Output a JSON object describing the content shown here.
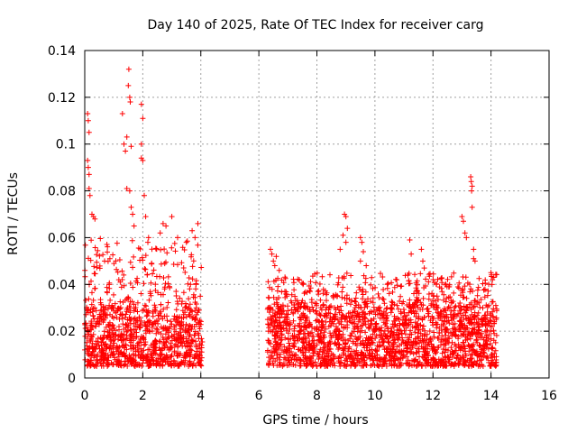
{
  "chart_data": {
    "type": "scatter",
    "title": "Day 140 of 2025, Rate Of TEC Index for receiver carg",
    "xlabel": "GPS time / hours",
    "ylabel": "ROTI / TECUs",
    "xlim": [
      0,
      16
    ],
    "ylim": [
      0,
      0.14
    ],
    "x_ticks": [
      0,
      2,
      4,
      6,
      8,
      10,
      12,
      14,
      16
    ],
    "y_ticks": [
      0,
      0.02,
      0.04,
      0.06,
      0.08,
      0.1,
      0.12,
      0.14
    ],
    "x_tick_labels": [
      "0",
      "2",
      "4",
      "6",
      "8",
      "10",
      "12",
      "14",
      "16"
    ],
    "y_tick_labels": [
      "0",
      "0.02",
      "0.04",
      "0.06",
      "0.08",
      "0.1",
      "0.12",
      "0.14"
    ],
    "grid": true,
    "marker": "+",
    "color": "#ff0000",
    "series": [
      {
        "name": "ROTI",
        "segments": [
          {
            "x_range": [
              0.0,
              4.05
            ],
            "baseline": [
              0.005,
              0.03
            ],
            "upper": [
              0.03,
              0.06
            ]
          },
          {
            "x_range": [
              6.3,
              14.2
            ],
            "baseline": [
              0.005,
              0.03
            ],
            "upper": [
              0.03,
              0.045
            ]
          }
        ],
        "highlights": [
          {
            "x": 0.1,
            "y": 0.113
          },
          {
            "x": 0.12,
            "y": 0.11
          },
          {
            "x": 0.15,
            "y": 0.105
          },
          {
            "x": 0.1,
            "y": 0.093
          },
          {
            "x": 0.12,
            "y": 0.09
          },
          {
            "x": 0.15,
            "y": 0.087
          },
          {
            "x": 0.15,
            "y": 0.081
          },
          {
            "x": 0.18,
            "y": 0.078
          },
          {
            "x": 0.25,
            "y": 0.07
          },
          {
            "x": 0.3,
            "y": 0.069
          },
          {
            "x": 0.35,
            "y": 0.068
          },
          {
            "x": 1.3,
            "y": 0.113
          },
          {
            "x": 1.35,
            "y": 0.1
          },
          {
            "x": 1.4,
            "y": 0.097
          },
          {
            "x": 1.45,
            "y": 0.103
          },
          {
            "x": 1.5,
            "y": 0.125
          },
          {
            "x": 1.52,
            "y": 0.132
          },
          {
            "x": 1.55,
            "y": 0.12
          },
          {
            "x": 1.57,
            "y": 0.118
          },
          {
            "x": 1.6,
            "y": 0.099
          },
          {
            "x": 1.45,
            "y": 0.081
          },
          {
            "x": 1.55,
            "y": 0.08
          },
          {
            "x": 1.6,
            "y": 0.073
          },
          {
            "x": 1.65,
            "y": 0.07
          },
          {
            "x": 1.7,
            "y": 0.065
          },
          {
            "x": 1.95,
            "y": 0.117
          },
          {
            "x": 2.0,
            "y": 0.111
          },
          {
            "x": 1.95,
            "y": 0.1
          },
          {
            "x": 1.95,
            "y": 0.094
          },
          {
            "x": 2.0,
            "y": 0.093
          },
          {
            "x": 2.05,
            "y": 0.078
          },
          {
            "x": 2.1,
            "y": 0.069
          },
          {
            "x": 2.2,
            "y": 0.06
          },
          {
            "x": 2.6,
            "y": 0.062
          },
          {
            "x": 2.7,
            "y": 0.066
          },
          {
            "x": 2.8,
            "y": 0.065
          },
          {
            "x": 3.0,
            "y": 0.069
          },
          {
            "x": 3.2,
            "y": 0.06
          },
          {
            "x": 3.5,
            "y": 0.058
          },
          {
            "x": 3.7,
            "y": 0.063
          },
          {
            "x": 3.8,
            "y": 0.06
          },
          {
            "x": 3.9,
            "y": 0.066
          },
          {
            "x": 6.4,
            "y": 0.055
          },
          {
            "x": 6.45,
            "y": 0.053
          },
          {
            "x": 6.5,
            "y": 0.05
          },
          {
            "x": 6.55,
            "y": 0.048
          },
          {
            "x": 6.6,
            "y": 0.052
          },
          {
            "x": 6.7,
            "y": 0.046
          },
          {
            "x": 8.95,
            "y": 0.07
          },
          {
            "x": 9.0,
            "y": 0.069
          },
          {
            "x": 9.05,
            "y": 0.064
          },
          {
            "x": 8.9,
            "y": 0.061
          },
          {
            "x": 9.0,
            "y": 0.058
          },
          {
            "x": 8.8,
            "y": 0.055
          },
          {
            "x": 9.5,
            "y": 0.06
          },
          {
            "x": 9.55,
            "y": 0.058
          },
          {
            "x": 9.6,
            "y": 0.054
          },
          {
            "x": 9.5,
            "y": 0.05
          },
          {
            "x": 9.7,
            "y": 0.048
          },
          {
            "x": 11.2,
            "y": 0.059
          },
          {
            "x": 11.25,
            "y": 0.053
          },
          {
            "x": 11.6,
            "y": 0.055
          },
          {
            "x": 11.65,
            "y": 0.05
          },
          {
            "x": 11.7,
            "y": 0.047
          },
          {
            "x": 13.0,
            "y": 0.069
          },
          {
            "x": 13.05,
            "y": 0.067
          },
          {
            "x": 13.1,
            "y": 0.062
          },
          {
            "x": 13.15,
            "y": 0.06
          },
          {
            "x": 13.3,
            "y": 0.086
          },
          {
            "x": 13.32,
            "y": 0.084
          },
          {
            "x": 13.35,
            "y": 0.082
          },
          {
            "x": 13.33,
            "y": 0.08
          },
          {
            "x": 13.35,
            "y": 0.073
          },
          {
            "x": 13.4,
            "y": 0.055
          },
          {
            "x": 13.4,
            "y": 0.051
          },
          {
            "x": 13.45,
            "y": 0.05
          },
          {
            "x": 14.0,
            "y": 0.045
          },
          {
            "x": 14.05,
            "y": 0.042
          },
          {
            "x": 14.1,
            "y": 0.043
          }
        ]
      }
    ]
  }
}
